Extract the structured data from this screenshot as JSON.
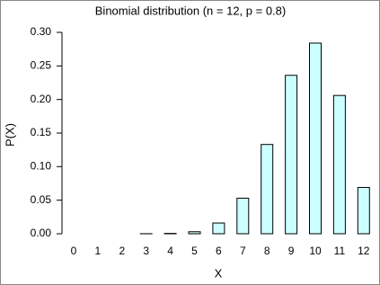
{
  "chart_data": {
    "type": "bar",
    "title": "Binomial distribution (n = 12, p = 0.8)",
    "x_label": "X",
    "y_label": "P(X)",
    "categories": [
      "0",
      "1",
      "2",
      "3",
      "4",
      "5",
      "6",
      "7",
      "8",
      "9",
      "10",
      "11",
      "12"
    ],
    "values": [
      0,
      0,
      0,
      0.0001,
      0.0005,
      0.003,
      0.016,
      0.053,
      0.133,
      0.236,
      0.284,
      0.206,
      0.069
    ],
    "color": "#ccffff",
    "ylim": [
      0,
      0.3
    ],
    "yticks": [
      {
        "value": 0,
        "label": "0.00"
      },
      {
        "value": 0.05,
        "label": "0.05"
      },
      {
        "value": 0.1,
        "label": "0.10"
      },
      {
        "value": 0.15,
        "label": "0.15"
      },
      {
        "value": 0.2,
        "label": "0.20"
      },
      {
        "value": 0.25,
        "label": "0.25"
      },
      {
        "value": 0.3,
        "label": "0.30"
      }
    ]
  }
}
